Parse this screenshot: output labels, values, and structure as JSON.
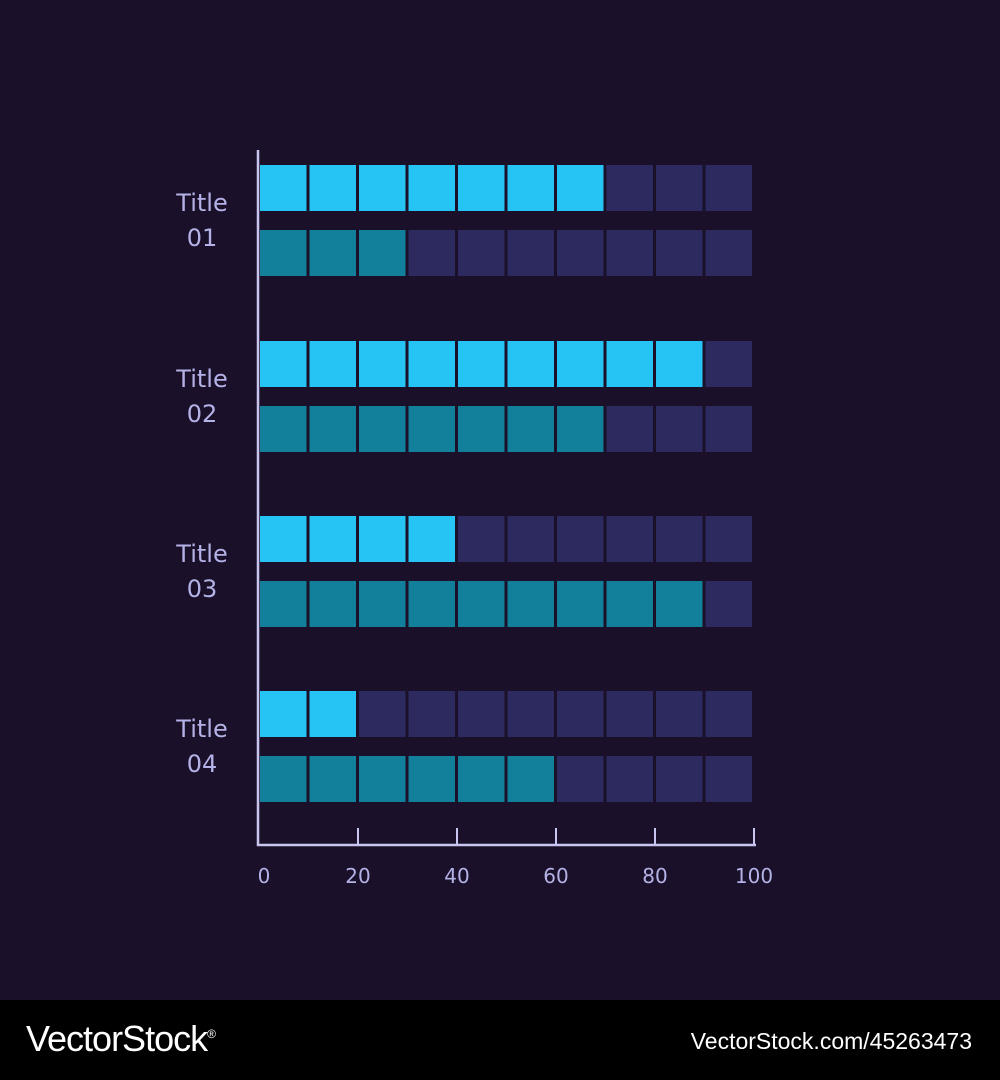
{
  "chart_data": {
    "type": "bar",
    "orientation": "horizontal",
    "style": "segmented",
    "segments": 10,
    "categories": [
      {
        "line1": "Title",
        "line2": "01"
      },
      {
        "line1": "Title",
        "line2": "02"
      },
      {
        "line1": "Title",
        "line2": "03"
      },
      {
        "line1": "Title",
        "line2": "04"
      }
    ],
    "series": [
      {
        "values": [
          70,
          90,
          40,
          20
        ],
        "color": "#26c4f5"
      },
      {
        "values": [
          30,
          70,
          90,
          60
        ],
        "color": "#12809a"
      }
    ],
    "empty_color": "#2d2a5f",
    "axis_color": "#c8c6f0",
    "label_color": "#b4b2e6",
    "xlim": [
      0,
      100
    ],
    "xticks": [
      "0",
      "20",
      "40",
      "60",
      "80",
      "100"
    ],
    "grid": false,
    "legend": false
  },
  "footer": {
    "brand": "VectorStock",
    "brand_mark": "®",
    "url": "VectorStock.com/45263473"
  }
}
